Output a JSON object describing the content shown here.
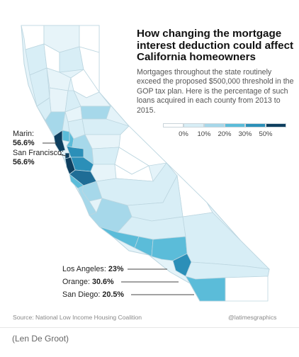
{
  "title": "How changing the mortgage interest deduction could affect California homeowners",
  "subtitle": "Mortgages throughout the state routinely exceed the proposed $500,000 threshold in the GOP tax plan. Here is the percentage of such loans acquired in each county from 2013 to 2015.",
  "legend": {
    "ticks": [
      "0%",
      "10%",
      "20%",
      "30%",
      "50%"
    ],
    "colors": [
      "#ffffff",
      "#d8eef6",
      "#a6d8ea",
      "#5bbcd9",
      "#2b8fb8",
      "#0e3f5f"
    ]
  },
  "callouts": {
    "marin": {
      "name": "Marin:",
      "value": "56.6%"
    },
    "san_francisco": {
      "name": "San Francisco:",
      "value": "56.6%"
    },
    "los_angeles": {
      "name": "Los Angeles:",
      "value": "23%"
    },
    "orange": {
      "name": "Orange:",
      "value": "30.6%"
    },
    "san_diego": {
      "name": "San Diego:",
      "value": "20.5%"
    }
  },
  "footer": {
    "source": "Source: National Low Income Housing Coalition",
    "credit": "@latimesgraphics"
  },
  "caption": "(Len De Groot)",
  "colors": {
    "border": "#bcd6e0",
    "leader": "#444444"
  }
}
